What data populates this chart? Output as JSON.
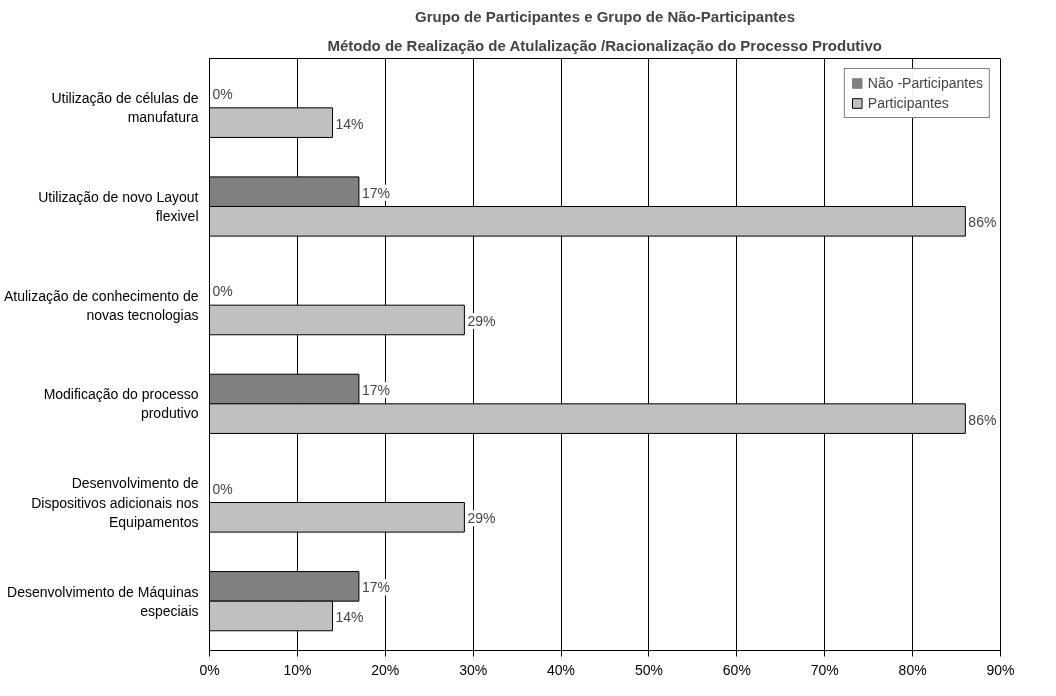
{
  "chart_data": {
    "type": "bar",
    "orientation": "horizontal",
    "title": "Grupo de Participantes e Grupo de Não-Participantes",
    "subtitle": "Método de Realização de Atulalização /Racionalização do Processo Produtivo",
    "categories": [
      "Utilização de células de manufatura",
      "Utilização de novo Layout flexivel",
      "Atulização de conhecimento de novas tecnologias",
      "Modificação do processo produtivo",
      "Desenvolvimento de Dispositivos adicionais nos Equipamentos",
      "Desenvolvimento de Máquinas especiais"
    ],
    "series": [
      {
        "name": "Não -Participantes",
        "color": "#808080",
        "values": [
          0,
          17,
          0,
          17,
          0,
          17
        ],
        "value_labels": [
          "0%",
          "17%",
          "0%",
          "17%",
          "0%",
          "17%"
        ]
      },
      {
        "name": "Participantes",
        "color": "#c0c0c0",
        "values": [
          14,
          86,
          29,
          86,
          29,
          14
        ],
        "value_labels": [
          "14%",
          "86%",
          "29%",
          "86%",
          "29%",
          "14%"
        ]
      }
    ],
    "xlim": [
      0,
      90
    ],
    "xticks": [
      {
        "value": 0,
        "label": "0%"
      },
      {
        "value": 10,
        "label": "10%"
      },
      {
        "value": 20,
        "label": "20%"
      },
      {
        "value": 30,
        "label": "30%"
      },
      {
        "value": 40,
        "label": "40%"
      },
      {
        "value": 50,
        "label": "50%"
      },
      {
        "value": 60,
        "label": "60%"
      },
      {
        "value": 70,
        "label": "70%"
      },
      {
        "value": 80,
        "label": "80%"
      },
      {
        "value": 90,
        "label": "90%"
      }
    ],
    "grid": "x",
    "legend": "top right"
  }
}
